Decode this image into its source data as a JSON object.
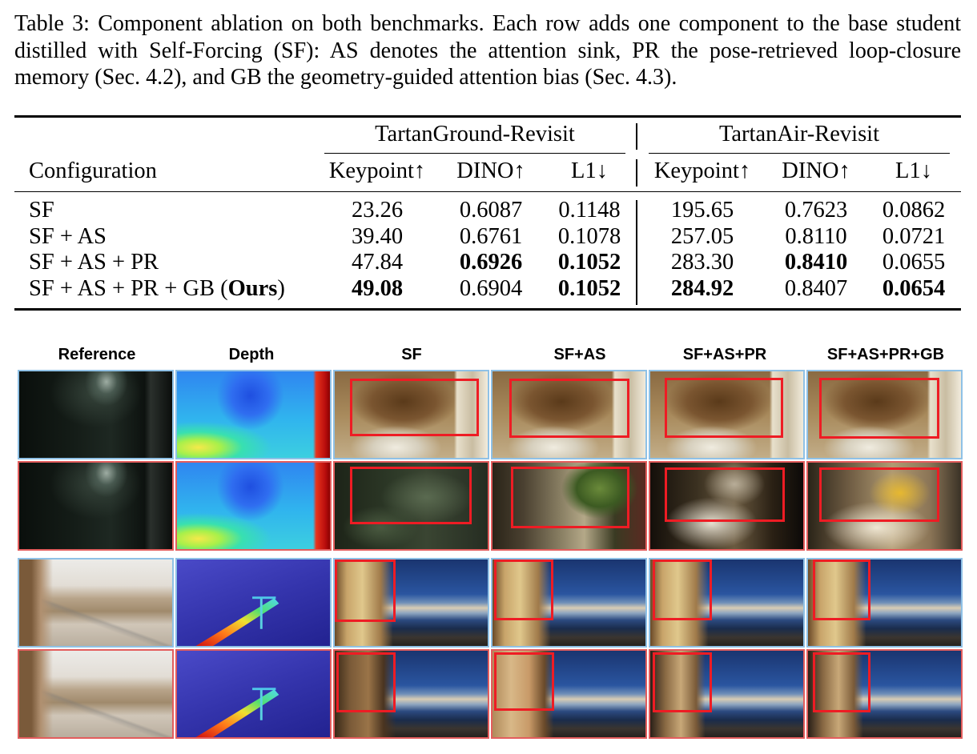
{
  "caption": {
    "lines": [
      "Table 3: Component ablation on both benchmarks. Each row adds one component to the base student",
      "distilled with Self-Forcing (SF): AS denotes the attention sink, PR the pose-retrieved loop-closure",
      "memory (Sec. 4.2), and GB the geometry-guided attention bias (Sec. 4.3)."
    ]
  },
  "table": {
    "groups": [
      "TartanGround-Revisit",
      "TartanAir-Revisit"
    ],
    "config_header": "Configuration",
    "column_headers": [
      "Keypoint↑",
      "DINO↑",
      "L1↓",
      "Keypoint↑",
      "DINO↑",
      "L1↓"
    ],
    "rows": [
      {
        "label_parts": [
          {
            "text": "SF",
            "bold": false
          }
        ],
        "values": [
          "23.26",
          "0.6087",
          "0.1148",
          "195.65",
          "0.7623",
          "0.0862"
        ],
        "bold": [
          false,
          false,
          false,
          false,
          false,
          false
        ]
      },
      {
        "label_parts": [
          {
            "text": "SF + AS",
            "bold": false
          }
        ],
        "values": [
          "39.40",
          "0.6761",
          "0.1078",
          "257.05",
          "0.8110",
          "0.0721"
        ],
        "bold": [
          false,
          false,
          false,
          false,
          false,
          false
        ]
      },
      {
        "label_parts": [
          {
            "text": "SF + AS + PR",
            "bold": false
          }
        ],
        "values": [
          "47.84",
          "0.6926",
          "0.1052",
          "283.30",
          "0.8410",
          "0.0655"
        ],
        "bold": [
          false,
          true,
          true,
          false,
          true,
          false
        ]
      },
      {
        "label_parts": [
          {
            "text": "SF + AS + PR + GB (",
            "bold": false
          },
          {
            "text": "Ours",
            "bold": true
          },
          {
            "text": ")",
            "bold": false
          }
        ],
        "values": [
          "49.08",
          "0.6904",
          "0.1052",
          "284.92",
          "0.8407",
          "0.0654"
        ],
        "bold": [
          true,
          false,
          true,
          true,
          false,
          true
        ]
      }
    ]
  },
  "figure": {
    "column_labels": [
      "Reference",
      "Depth",
      "SF",
      "SF+AS",
      "SF+AS+PR",
      "SF+AS+PR+GB"
    ],
    "colors": {
      "first_view_border": "#8fc1e6",
      "second_view_border": "#e35d5d",
      "highlight_box": "#ee1c24"
    }
  }
}
